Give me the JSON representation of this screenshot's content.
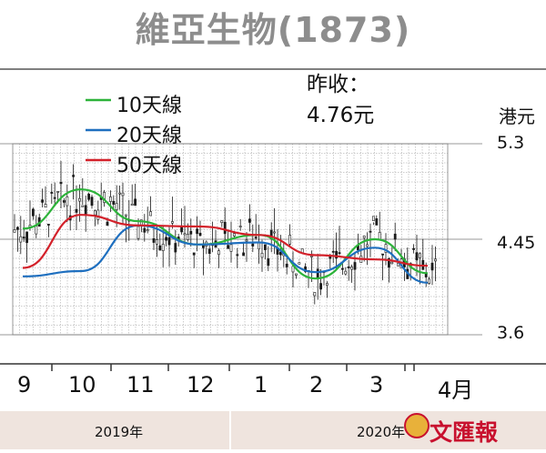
{
  "title": "維亞生物(1873)",
  "legend": {
    "ma10": "10天線",
    "ma20": "20天線",
    "ma50": "50天線"
  },
  "close_note": {
    "label": "昨收：",
    "value": "4.76元"
  },
  "unit": "港元",
  "years": {
    "y2019": "2019年",
    "y2020": "2020年"
  },
  "logo_text": "文匯報",
  "colors": {
    "ma10": "#2db33a",
    "ma20": "#1e6fbf",
    "ma50": "#d3212a",
    "price": "#1a1a1a",
    "grid": "#9a9a9a"
  },
  "chart_data": {
    "type": "line",
    "x_labels": [
      "9",
      "10",
      "11",
      "12",
      "1",
      "2",
      "3",
      "4月"
    ],
    "y_ticks": [
      5.3,
      4.45,
      3.6
    ],
    "ylim": [
      3.55,
      5.35
    ],
    "x": [
      "Sep-2019",
      "Oct-2019",
      "Nov-2019",
      "Dec-2019",
      "Jan-2020",
      "Feb-2020",
      "Mar-2020",
      "Apr-2020"
    ],
    "series": [
      {
        "name": "10天線",
        "values": [
          4.55,
          4.92,
          4.62,
          4.4,
          4.49,
          4.08,
          4.45,
          4.13
        ]
      },
      {
        "name": "20天線",
        "values": [
          4.1,
          4.15,
          4.58,
          4.4,
          4.42,
          4.14,
          4.37,
          4.04
        ]
      },
      {
        "name": "50天線",
        "values": [
          4.18,
          4.68,
          4.58,
          4.57,
          4.49,
          4.3,
          4.26,
          4.2
        ]
      }
    ]
  }
}
